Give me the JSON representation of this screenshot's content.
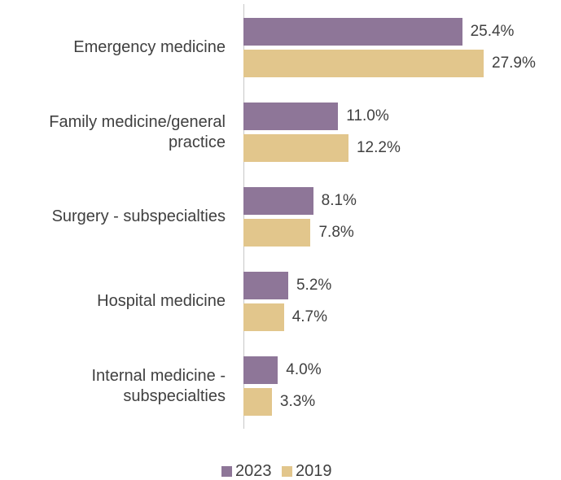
{
  "chart_data": {
    "type": "bar",
    "orientation": "horizontal",
    "categories": [
      "Emergency medicine",
      "Family medicine/general practice",
      "Surgery - subspecialties",
      "Hospital medicine",
      "Internal medicine - subspecialties"
    ],
    "series": [
      {
        "name": "2023",
        "color": "#8e7698",
        "values": [
          25.4,
          11.0,
          8.1,
          5.2,
          4.0
        ],
        "value_labels": [
          "25.4%",
          "11.0%",
          "8.1%",
          "5.2%",
          "4.0%"
        ]
      },
      {
        "name": "2019",
        "color": "#e2c68c",
        "values": [
          27.9,
          12.2,
          7.8,
          4.7,
          3.3
        ],
        "value_labels": [
          "27.9%",
          "12.2%",
          "7.8%",
          "4.7%",
          "3.3%"
        ]
      }
    ],
    "legend": "bottom"
  }
}
